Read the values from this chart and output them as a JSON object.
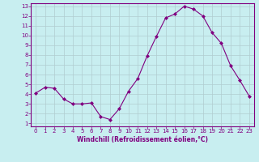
{
  "x": [
    0,
    1,
    2,
    3,
    4,
    5,
    6,
    7,
    8,
    9,
    10,
    11,
    12,
    13,
    14,
    15,
    16,
    17,
    18,
    19,
    20,
    21,
    22,
    23
  ],
  "y": [
    4.1,
    4.7,
    4.6,
    3.5,
    3.0,
    3.0,
    3.1,
    1.7,
    1.4,
    2.5,
    4.3,
    5.6,
    7.9,
    9.9,
    11.8,
    12.2,
    13.0,
    12.7,
    12.0,
    10.3,
    9.2,
    6.9,
    5.4,
    3.8
  ],
  "line_color": "#800080",
  "marker": "D",
  "marker_size": 2.0,
  "bg_color": "#c8eef0",
  "grid_color": "#b0ccd0",
  "xlabel": "Windchill (Refroidissement éolien,°C)",
  "xlabel_color": "#800080",
  "tick_color": "#800080",
  "spine_color": "#800080",
  "ylim": [
    1,
    13
  ],
  "xlim": [
    0,
    23
  ],
  "yticks": [
    1,
    2,
    3,
    4,
    5,
    6,
    7,
    8,
    9,
    10,
    11,
    12,
    13
  ],
  "xticks": [
    0,
    1,
    2,
    3,
    4,
    5,
    6,
    7,
    8,
    9,
    10,
    11,
    12,
    13,
    14,
    15,
    16,
    17,
    18,
    19,
    20,
    21,
    22,
    23
  ],
  "tick_fontsize": 5.0,
  "xlabel_fontsize": 5.5
}
